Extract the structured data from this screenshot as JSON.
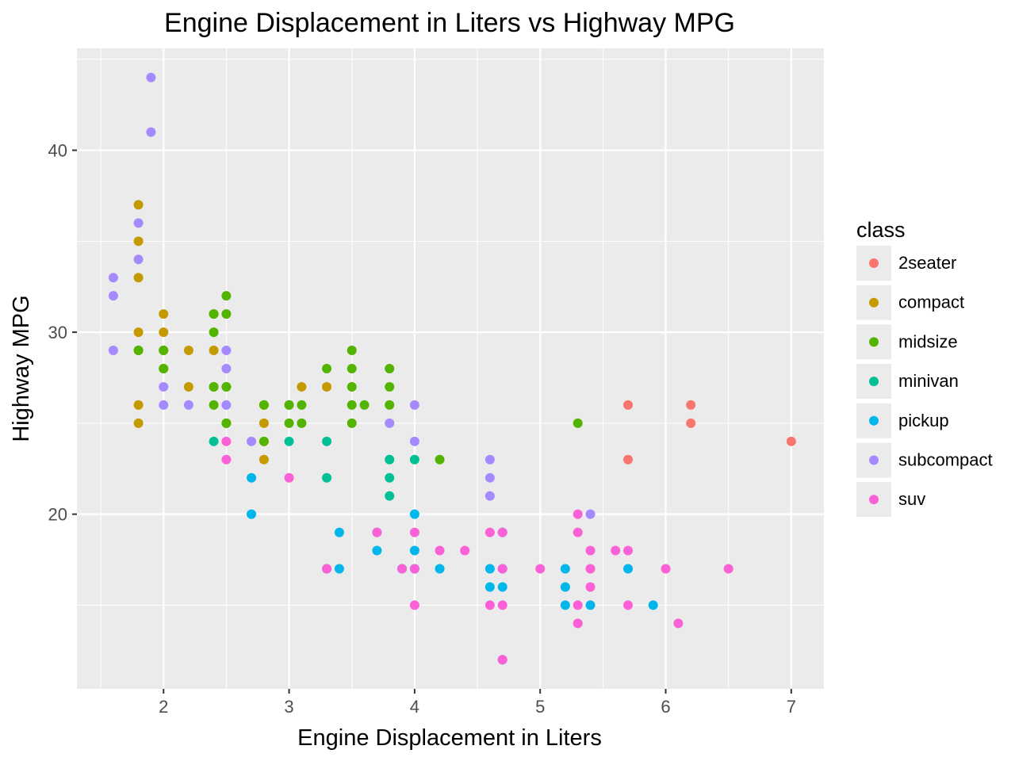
{
  "chart_data": {
    "type": "scatter",
    "title": "Engine Displacement in Liters vs Highway MPG",
    "xlabel": "Engine Displacement in Liters",
    "ylabel": "Highway MPG",
    "xlim": [
      1.31,
      7.26
    ],
    "ylim": [
      10.4,
      45.6
    ],
    "x_ticks": [
      2,
      3,
      4,
      5,
      6,
      7
    ],
    "y_ticks": [
      20,
      30,
      40
    ],
    "grid": true,
    "legend_title": "class",
    "legend_position": "right",
    "series": [
      {
        "name": "2seater",
        "color": "#F8766D",
        "points": [
          [
            5.7,
            26
          ],
          [
            5.7,
            23
          ],
          [
            6.2,
            26
          ],
          [
            6.2,
            25
          ],
          [
            7.0,
            24
          ]
        ]
      },
      {
        "name": "compact",
        "color": "#C49A00",
        "points": [
          [
            1.8,
            37
          ],
          [
            1.8,
            35
          ],
          [
            1.8,
            33
          ],
          [
            1.8,
            30
          ],
          [
            1.8,
            29
          ],
          [
            1.8,
            26
          ],
          [
            1.8,
            25
          ],
          [
            2.0,
            31
          ],
          [
            2.0,
            30
          ],
          [
            2.0,
            29
          ],
          [
            2.0,
            28
          ],
          [
            2.2,
            29
          ],
          [
            2.2,
            27
          ],
          [
            2.4,
            31
          ],
          [
            2.4,
            29
          ],
          [
            2.4,
            27
          ],
          [
            2.5,
            27
          ],
          [
            2.5,
            25
          ],
          [
            2.8,
            26
          ],
          [
            2.8,
            25
          ],
          [
            2.8,
            24
          ],
          [
            2.8,
            23
          ],
          [
            3.0,
            26
          ],
          [
            3.1,
            27
          ],
          [
            3.3,
            27
          ]
        ]
      },
      {
        "name": "midsize",
        "color": "#53B400",
        "points": [
          [
            1.8,
            29
          ],
          [
            2.0,
            29
          ],
          [
            2.0,
            28
          ],
          [
            2.4,
            31
          ],
          [
            2.4,
            30
          ],
          [
            2.4,
            27
          ],
          [
            2.4,
            26
          ],
          [
            2.5,
            32
          ],
          [
            2.5,
            31
          ],
          [
            2.5,
            27
          ],
          [
            2.5,
            25
          ],
          [
            2.8,
            26
          ],
          [
            2.8,
            24
          ],
          [
            3.0,
            26
          ],
          [
            3.0,
            25
          ],
          [
            3.1,
            26
          ],
          [
            3.1,
            25
          ],
          [
            3.3,
            28
          ],
          [
            3.5,
            29
          ],
          [
            3.5,
            28
          ],
          [
            3.5,
            27
          ],
          [
            3.5,
            26
          ],
          [
            3.5,
            25
          ],
          [
            3.6,
            26
          ],
          [
            3.8,
            28
          ],
          [
            3.8,
            27
          ],
          [
            3.8,
            26
          ],
          [
            4.2,
            23
          ],
          [
            5.3,
            25
          ]
        ]
      },
      {
        "name": "minivan",
        "color": "#00C094",
        "points": [
          [
            2.4,
            24
          ],
          [
            3.0,
            24
          ],
          [
            3.3,
            24
          ],
          [
            3.3,
            22
          ],
          [
            3.8,
            23
          ],
          [
            3.8,
            22
          ],
          [
            3.8,
            21
          ],
          [
            4.0,
            23
          ]
        ]
      },
      {
        "name": "pickup",
        "color": "#00B6EB",
        "points": [
          [
            2.7,
            22
          ],
          [
            2.7,
            20
          ],
          [
            3.3,
            17
          ],
          [
            3.4,
            19
          ],
          [
            3.4,
            17
          ],
          [
            3.7,
            19
          ],
          [
            3.7,
            18
          ],
          [
            3.9,
            17
          ],
          [
            4.0,
            20
          ],
          [
            4.0,
            18
          ],
          [
            4.0,
            17
          ],
          [
            4.2,
            17
          ],
          [
            4.6,
            17
          ],
          [
            4.6,
            16
          ],
          [
            4.7,
            19
          ],
          [
            4.7,
            17
          ],
          [
            4.7,
            16
          ],
          [
            4.7,
            12
          ],
          [
            5.2,
            17
          ],
          [
            5.2,
            16
          ],
          [
            5.2,
            15
          ],
          [
            5.4,
            15
          ],
          [
            5.7,
            17
          ],
          [
            5.9,
            15
          ]
        ]
      },
      {
        "name": "subcompact",
        "color": "#A58AFF",
        "points": [
          [
            1.6,
            33
          ],
          [
            1.6,
            32
          ],
          [
            1.6,
            29
          ],
          [
            1.8,
            36
          ],
          [
            1.8,
            34
          ],
          [
            1.9,
            44
          ],
          [
            1.9,
            41
          ],
          [
            2.0,
            27
          ],
          [
            2.0,
            26
          ],
          [
            2.2,
            26
          ],
          [
            2.5,
            29
          ],
          [
            2.5,
            28
          ],
          [
            2.5,
            26
          ],
          [
            2.7,
            24
          ],
          [
            3.8,
            25
          ],
          [
            4.0,
            26
          ],
          [
            4.0,
            24
          ],
          [
            4.6,
            23
          ],
          [
            4.6,
            22
          ],
          [
            4.6,
            21
          ],
          [
            5.4,
            20
          ]
        ]
      },
      {
        "name": "suv",
        "color": "#FB61D7",
        "points": [
          [
            2.5,
            24
          ],
          [
            2.5,
            23
          ],
          [
            3.0,
            22
          ],
          [
            3.3,
            17
          ],
          [
            3.7,
            19
          ],
          [
            3.9,
            17
          ],
          [
            4.0,
            19
          ],
          [
            4.0,
            17
          ],
          [
            4.0,
            15
          ],
          [
            4.2,
            18
          ],
          [
            4.4,
            18
          ],
          [
            4.6,
            19
          ],
          [
            4.6,
            15
          ],
          [
            4.7,
            19
          ],
          [
            4.7,
            17
          ],
          [
            4.7,
            15
          ],
          [
            4.7,
            12
          ],
          [
            5.0,
            17
          ],
          [
            5.3,
            20
          ],
          [
            5.3,
            19
          ],
          [
            5.3,
            15
          ],
          [
            5.3,
            14
          ],
          [
            5.4,
            18
          ],
          [
            5.4,
            17
          ],
          [
            5.4,
            16
          ],
          [
            5.6,
            18
          ],
          [
            5.7,
            18
          ],
          [
            5.7,
            15
          ],
          [
            6.0,
            17
          ],
          [
            6.1,
            14
          ],
          [
            6.5,
            17
          ]
        ]
      }
    ]
  }
}
